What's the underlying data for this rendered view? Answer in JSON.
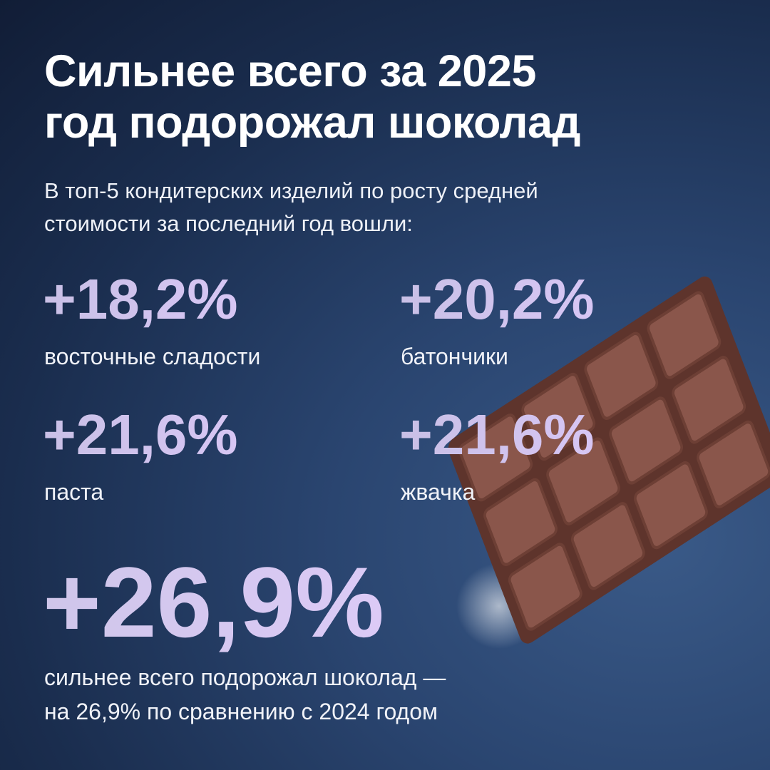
{
  "header": {
    "title_lines": [
      "Сильнее всего за 2025",
      "год подорожал шоколад"
    ],
    "subtitle_lines": [
      "В топ-5 кондитерских изделий по росту средней",
      "стоимости за последний год вошли:"
    ]
  },
  "stats": [
    {
      "value": "+18,2%",
      "label": "восточные сладости"
    },
    {
      "value": "+20,2%",
      "label": "батончики"
    },
    {
      "value": "+21,6%",
      "label": "паста"
    },
    {
      "value": "+21,6%",
      "label": "жвачка"
    }
  ],
  "highlight": {
    "value": "+26,9%",
    "caption_lines": [
      "сильнее всего подорожал шоколад —",
      "на 26,9% по сравнению с 2024 годом"
    ]
  }
}
